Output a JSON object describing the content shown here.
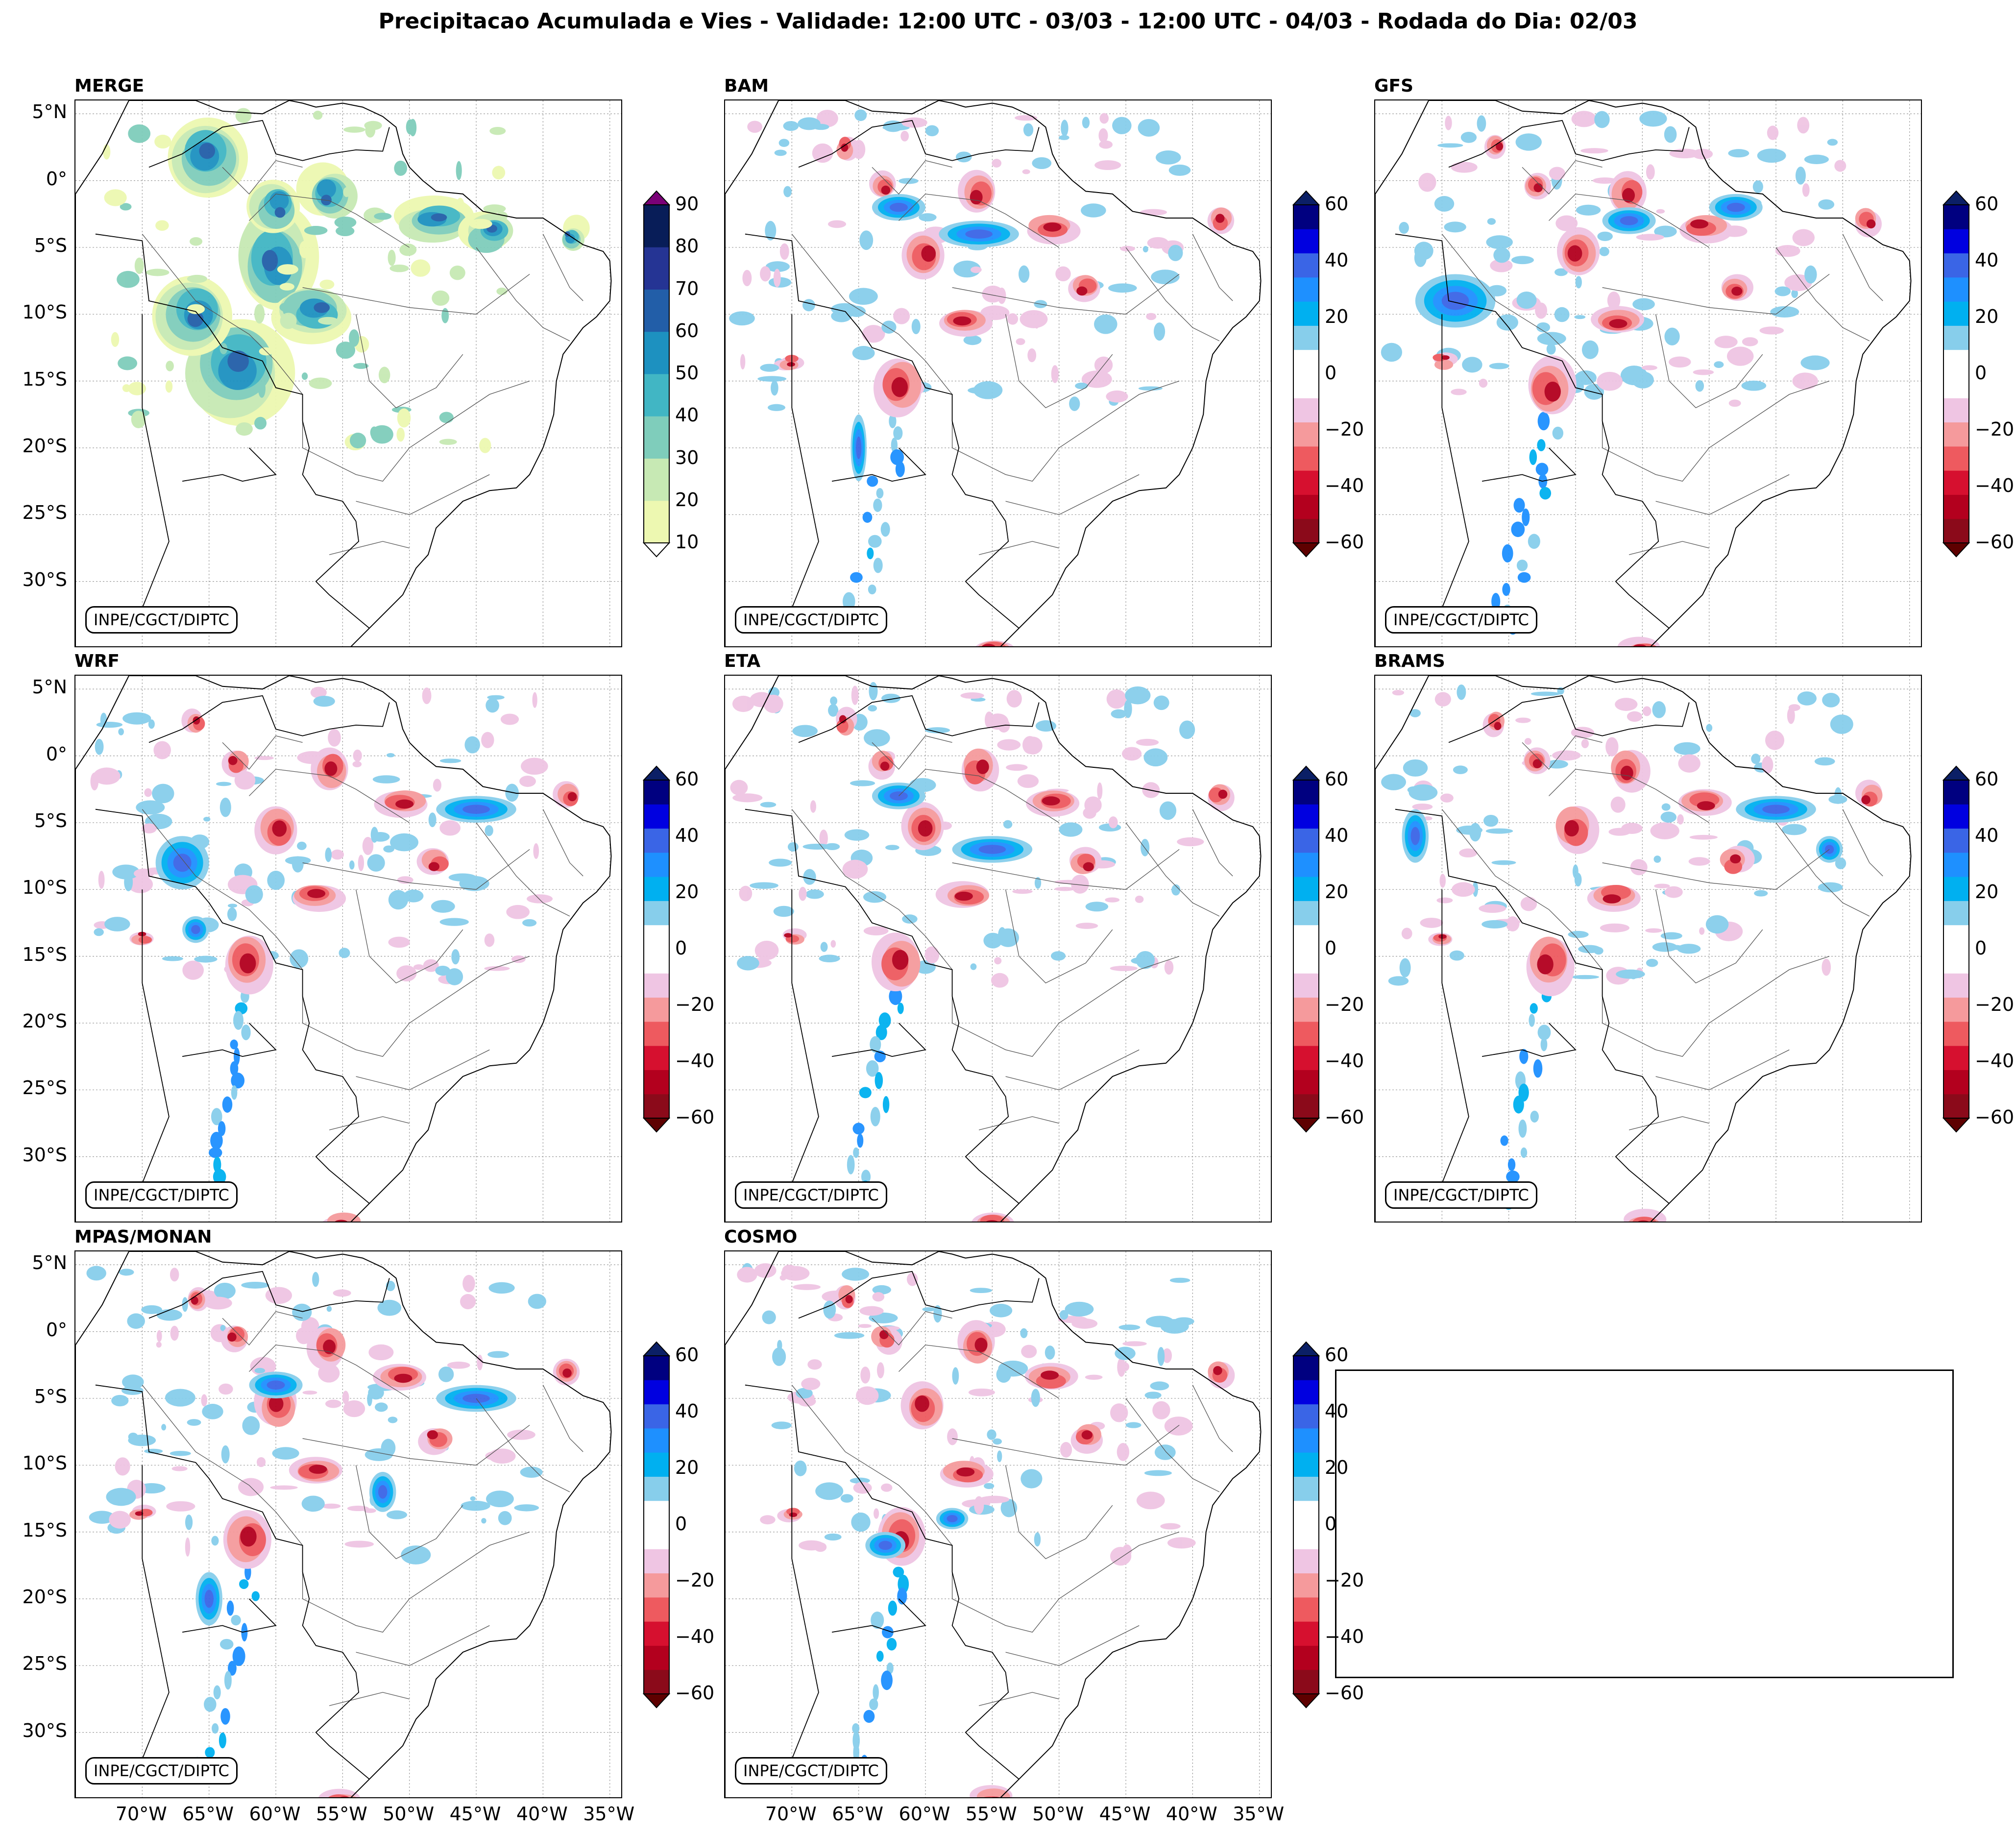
{
  "title": "Precipitacao Acumulada e Vies - Validade: 12:00 UTC - 03/03 - 12:00 UTC - 04/03 - Rodada do Dia: 02/03",
  "credit": "INPE/CGCT/DIPTC",
  "lat_labels": [
    "5°N",
    "0°",
    "5°S",
    "10°S",
    "15°S",
    "20°S",
    "25°S",
    "30°S"
  ],
  "lon_labels": [
    "70°W",
    "65°W",
    "60°W",
    "55°W",
    "50°W",
    "45°W",
    "40°W",
    "35°W"
  ],
  "panels": [
    {
      "name": "MERGE",
      "type": "precip"
    },
    {
      "name": "BAM",
      "type": "bias"
    },
    {
      "name": "GFS",
      "type": "bias"
    },
    {
      "name": "WRF",
      "type": "bias"
    },
    {
      "name": "ETA",
      "type": "bias"
    },
    {
      "name": "BRAMS",
      "type": "bias"
    },
    {
      "name": "MPAS/MONAN",
      "type": "bias"
    },
    {
      "name": "COSMO",
      "type": "bias"
    }
  ],
  "colorbars": {
    "precip": {
      "labels": [
        "90",
        "80",
        "70",
        "60",
        "50",
        "40",
        "30",
        "20",
        "10"
      ],
      "colors": [
        "#edf8b1",
        "#c7e9b4",
        "#7fcdbb",
        "#41b6c4",
        "#1d91c0",
        "#225ea8",
        "#253494",
        "#081d58"
      ],
      "over_color": "#7a0177",
      "under_color": "#ffffff"
    },
    "bias": {
      "labels": [
        "60",
        "40",
        "20",
        "0",
        "−20",
        "−40",
        "−60"
      ],
      "colors": [
        "#8b0a1a",
        "#b3001e",
        "#d6102f",
        "#ee5a5f",
        "#f59a9c",
        "#efc5e3",
        "#ffffff",
        "#ffffff",
        "#87ceeb",
        "#00b0f0",
        "#1e90ff",
        "#3a65e6",
        "#0000e0",
        "#000080"
      ],
      "over_color": "#0b1f66",
      "under_color": "#5e0000"
    }
  }
}
